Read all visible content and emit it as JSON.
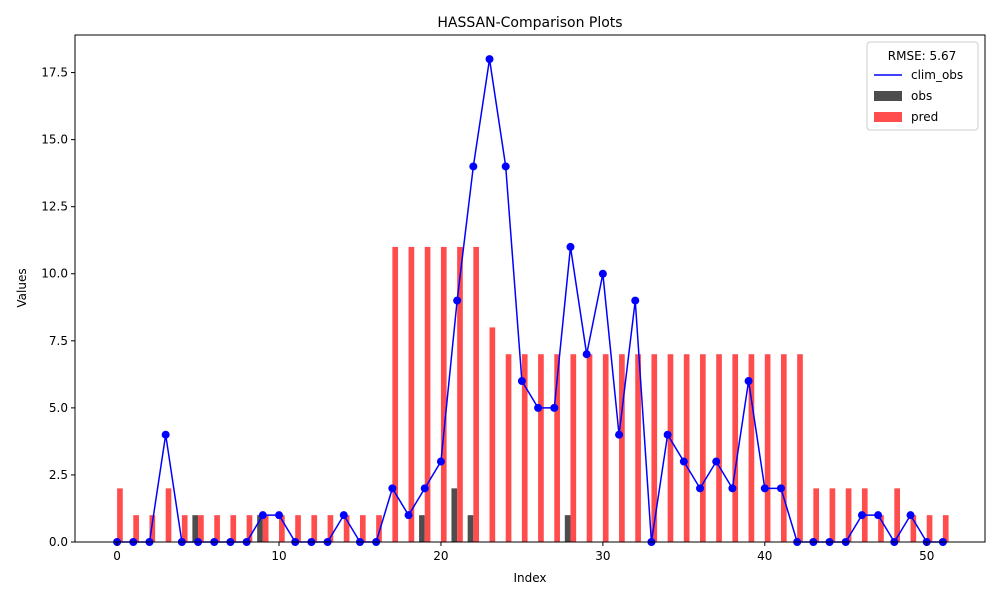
{
  "chart_data": {
    "type": "bar",
    "title": "HASSAN-Comparison Plots",
    "xlabel": "Index",
    "ylabel": "Values",
    "xlim": [
      -2.6,
      53.6
    ],
    "ylim": [
      0,
      18.9
    ],
    "xticks": [
      0,
      10,
      20,
      30,
      40,
      50
    ],
    "yticks": [
      0.0,
      2.5,
      5.0,
      7.5,
      10.0,
      12.5,
      15.0,
      17.5
    ],
    "ytick_labels": [
      "0.0",
      "2.5",
      "5.0",
      "7.5",
      "10.0",
      "12.5",
      "15.0",
      "17.5"
    ],
    "grid": false,
    "legend": {
      "title": "RMSE: 5.67",
      "placement": "top-right",
      "entries": [
        "clim_obs",
        "obs",
        "pred"
      ]
    },
    "x": [
      0,
      1,
      2,
      3,
      4,
      5,
      6,
      7,
      8,
      9,
      10,
      11,
      12,
      13,
      14,
      15,
      16,
      17,
      18,
      19,
      20,
      21,
      22,
      23,
      24,
      25,
      26,
      27,
      28,
      29,
      30,
      31,
      32,
      33,
      34,
      35,
      36,
      37,
      38,
      39,
      40,
      41,
      42,
      43,
      44,
      45,
      46,
      47,
      48,
      49,
      50,
      51
    ],
    "series": [
      {
        "name": "clim_obs",
        "type": "line",
        "color": "#0000ff",
        "values": [
          0,
          0,
          0,
          4,
          0,
          0,
          0,
          0,
          0,
          1,
          1,
          0,
          0,
          0,
          1,
          0,
          0,
          2,
          1,
          2,
          3,
          9,
          14,
          18,
          14,
          6,
          5,
          5,
          11,
          7,
          10,
          4,
          9,
          0,
          4,
          3,
          2,
          3,
          2,
          6,
          2,
          2,
          0,
          0,
          0,
          0,
          1,
          1,
          0,
          1,
          0,
          0
        ]
      },
      {
        "name": "obs",
        "type": "bar",
        "color": "#4d4d4d",
        "values": [
          0,
          0,
          0,
          0,
          0,
          1,
          0,
          0,
          0,
          1,
          0,
          0,
          0,
          0,
          0,
          0,
          0,
          0,
          0,
          1,
          0,
          2,
          1,
          0,
          0,
          0,
          0,
          0,
          1,
          0,
          0,
          0,
          0,
          0,
          0,
          0,
          0,
          0,
          0,
          0,
          0,
          0,
          0,
          0,
          0,
          0,
          0,
          0,
          0,
          0,
          0,
          0
        ]
      },
      {
        "name": "pred",
        "type": "bar",
        "color": "#ff4d4d",
        "values": [
          2,
          1,
          1,
          2,
          1,
          1,
          1,
          1,
          1,
          1,
          1,
          1,
          1,
          1,
          1,
          1,
          1,
          11,
          11,
          11,
          11,
          11,
          11,
          8,
          7,
          7,
          7,
          7,
          7,
          7,
          7,
          7,
          7,
          7,
          7,
          7,
          7,
          7,
          7,
          7,
          7,
          7,
          7,
          2,
          2,
          2,
          2,
          1,
          2,
          1,
          1,
          1
        ]
      }
    ]
  }
}
